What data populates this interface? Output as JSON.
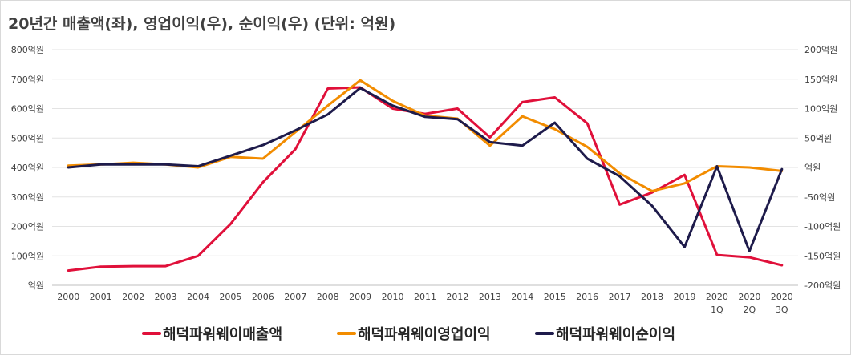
{
  "chart_data": {
    "type": "line",
    "title": "20년간 매출액(좌), 영업이익(우), 순이익(우) (단위: 억원)",
    "categories": [
      [
        "2000"
      ],
      [
        "2001"
      ],
      [
        "2002"
      ],
      [
        "2003"
      ],
      [
        "2004"
      ],
      [
        "2005"
      ],
      [
        "2006"
      ],
      [
        "2007"
      ],
      [
        "2008"
      ],
      [
        "2009"
      ],
      [
        "2010"
      ],
      [
        "2011"
      ],
      [
        "2012"
      ],
      [
        "2013"
      ],
      [
        "2014"
      ],
      [
        "2015"
      ],
      [
        "2016"
      ],
      [
        "2017"
      ],
      [
        "2018"
      ],
      [
        "2019"
      ],
      [
        "2020",
        "1Q"
      ],
      [
        "2020",
        "2Q"
      ],
      [
        "2020",
        "3Q"
      ]
    ],
    "y_left": {
      "min": 0,
      "max": 800,
      "step": 100,
      "tick_labels": [
        "억원",
        "100억원",
        "200억원",
        "300억원",
        "400억원",
        "500억원",
        "600억원",
        "700억원",
        "800억원"
      ]
    },
    "y_right": {
      "min": -200,
      "max": 200,
      "step": 50,
      "tick_labels": [
        "-200억원",
        "-150억원",
        "-100억원",
        "-50억원",
        "억원",
        "50억원",
        "100억원",
        "150억원",
        "200억원"
      ]
    },
    "grid": true,
    "legend_position": "bottom",
    "series": [
      {
        "name": "해덕파워웨이매출액",
        "axis": "left",
        "color": "#e0103a",
        "values": [
          50,
          63,
          65,
          65,
          100,
          208,
          350,
          462,
          668,
          672,
          600,
          582,
          600,
          502,
          622,
          638,
          550,
          274,
          315,
          375,
          103,
          95,
          68
        ]
      },
      {
        "name": "해덕파워웨이영업이익",
        "axis": "left_scaled_right",
        "color": "#f28c00",
        "values": [
          3,
          5,
          8,
          5,
          0,
          18,
          15,
          60,
          105,
          148,
          113,
          88,
          83,
          37,
          87,
          65,
          35,
          -10,
          -40,
          -27,
          2,
          0,
          -6
        ]
      },
      {
        "name": "해덕파워웨이순이익",
        "axis": "right",
        "color": "#1e1b4b",
        "values": [
          0,
          5,
          5,
          5,
          2,
          20,
          38,
          63,
          90,
          135,
          105,
          86,
          82,
          43,
          37,
          76,
          15,
          -15,
          -65,
          -135,
          2,
          -142,
          -3
        ]
      }
    ]
  }
}
